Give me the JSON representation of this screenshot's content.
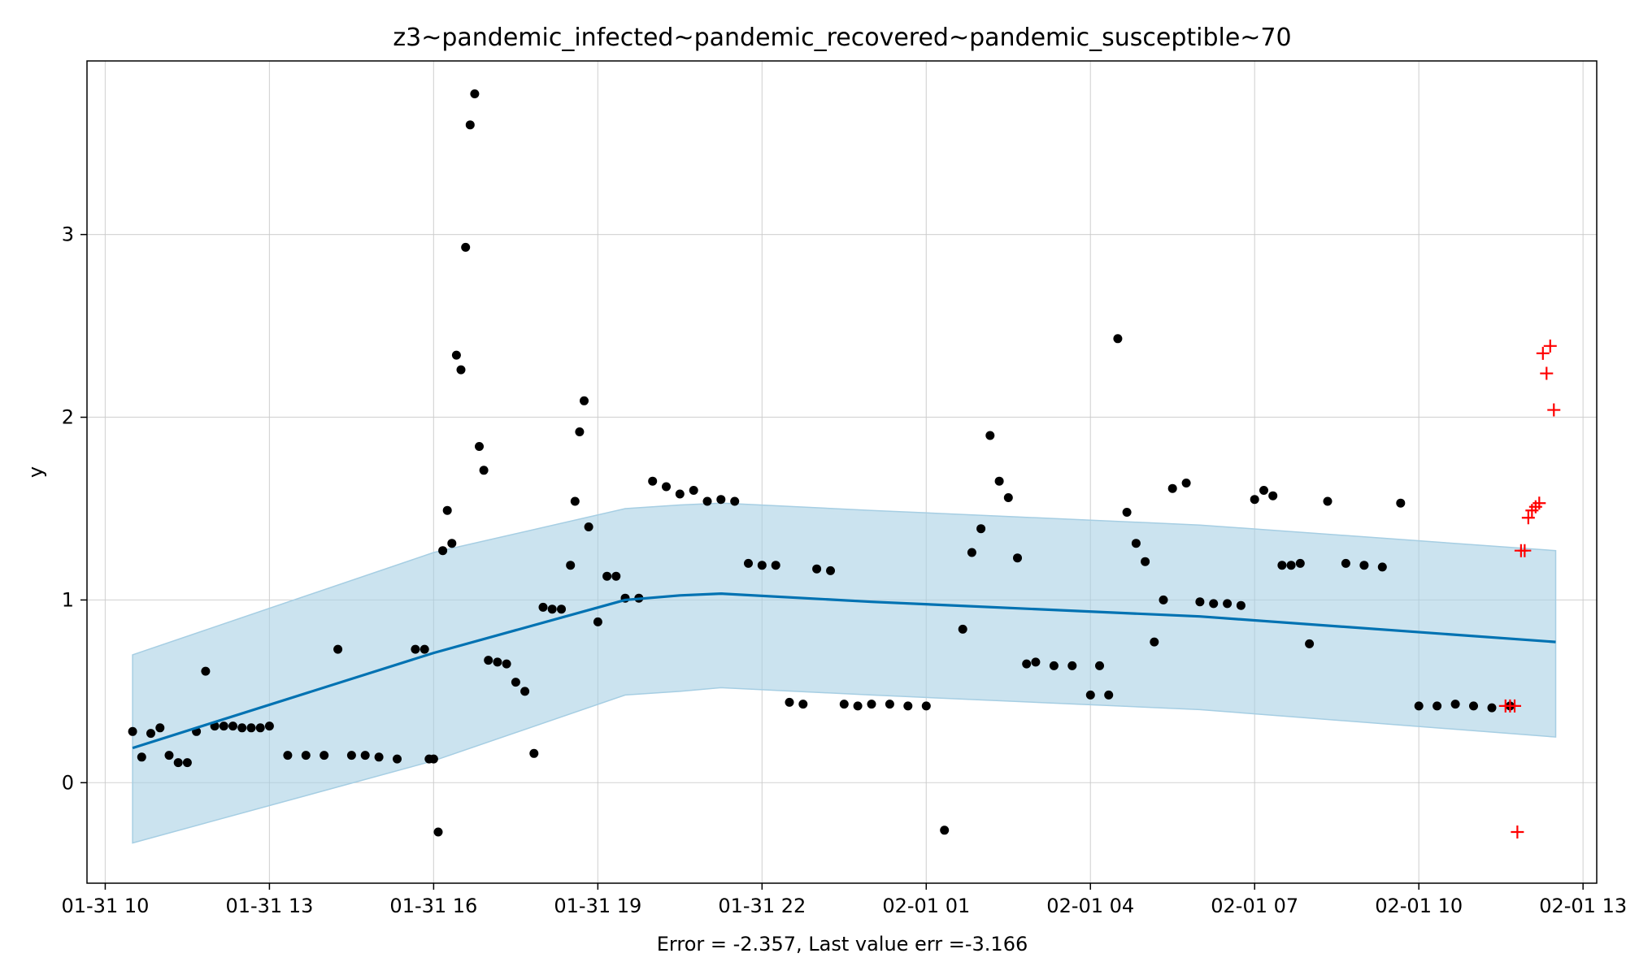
{
  "chart_data": {
    "type": "scatter",
    "title": "z3~pandemic_infected~pandemic_recovered~pandemic_susceptible~70",
    "xlabel": "Error = -2.357, Last value err =-3.166",
    "ylabel": "y",
    "xlim": [
      "2025-01-31T09:40",
      "2025-02-01T13:15"
    ],
    "ylim": [
      -0.55,
      3.95
    ],
    "grid": true,
    "x_ticks": [
      "01-31 10",
      "01-31 13",
      "01-31 16",
      "01-31 19",
      "01-31 22",
      "02-01 01",
      "02-01 04",
      "02-01 07",
      "02-01 10",
      "02-01 13"
    ],
    "x_tick_times": [
      "2025-01-31T10:00",
      "2025-01-31T13:00",
      "2025-01-31T16:00",
      "2025-01-31T19:00",
      "2025-01-31T22:00",
      "2025-02-01T01:00",
      "2025-02-01T04:00",
      "2025-02-01T07:00",
      "2025-02-01T10:00",
      "2025-02-01T13:00"
    ],
    "y_ticks": [
      0,
      1,
      2,
      3
    ],
    "colors": {
      "forecast": "#0072b2",
      "band": "#a6cee3",
      "observed": "#000000",
      "future": "#ff0000"
    },
    "forecast": {
      "x": [
        "2025-01-31T10:30",
        "2025-01-31T16:00",
        "2025-01-31T19:30",
        "2025-01-31T20:30",
        "2025-01-31T21:15",
        "2025-02-01T00:00",
        "2025-02-01T06:00",
        "2025-02-01T12:30"
      ],
      "y": [
        0.19,
        0.71,
        1.0,
        1.025,
        1.035,
        0.99,
        0.91,
        0.77
      ],
      "upper": [
        0.7,
        1.26,
        1.5,
        1.52,
        1.53,
        1.49,
        1.41,
        1.27
      ],
      "lower": [
        -0.33,
        0.12,
        0.48,
        0.5,
        0.52,
        0.48,
        0.4,
        0.25
      ]
    },
    "observed": {
      "x": [
        "2025-01-31T10:30",
        "2025-01-31T10:40",
        "2025-01-31T10:50",
        "2025-01-31T11:00",
        "2025-01-31T11:10",
        "2025-01-31T11:20",
        "2025-01-31T11:30",
        "2025-01-31T11:40",
        "2025-01-31T11:50",
        "2025-01-31T12:00",
        "2025-01-31T12:10",
        "2025-01-31T12:20",
        "2025-01-31T12:30",
        "2025-01-31T12:40",
        "2025-01-31T12:50",
        "2025-01-31T13:00",
        "2025-01-31T13:20",
        "2025-01-31T13:40",
        "2025-01-31T14:00",
        "2025-01-31T14:15",
        "2025-01-31T14:30",
        "2025-01-31T14:45",
        "2025-01-31T15:00",
        "2025-01-31T15:20",
        "2025-01-31T15:40",
        "2025-01-31T15:50",
        "2025-01-31T15:55",
        "2025-01-31T16:00",
        "2025-01-31T16:05",
        "2025-01-31T16:10",
        "2025-01-31T16:15",
        "2025-01-31T16:20",
        "2025-01-31T16:25",
        "2025-01-31T16:30",
        "2025-01-31T16:35",
        "2025-01-31T16:40",
        "2025-01-31T16:45",
        "2025-01-31T16:50",
        "2025-01-31T16:55",
        "2025-01-31T17:00",
        "2025-01-31T17:10",
        "2025-01-31T17:20",
        "2025-01-31T17:30",
        "2025-01-31T17:40",
        "2025-01-31T17:50",
        "2025-01-31T18:00",
        "2025-01-31T18:10",
        "2025-01-31T18:20",
        "2025-01-31T18:30",
        "2025-01-31T18:35",
        "2025-01-31T18:40",
        "2025-01-31T18:45",
        "2025-01-31T18:50",
        "2025-01-31T19:00",
        "2025-01-31T19:10",
        "2025-01-31T19:20",
        "2025-01-31T19:30",
        "2025-01-31T19:45",
        "2025-01-31T20:00",
        "2025-01-31T20:15",
        "2025-01-31T20:30",
        "2025-01-31T20:45",
        "2025-01-31T21:00",
        "2025-01-31T21:15",
        "2025-01-31T21:30",
        "2025-01-31T21:45",
        "2025-01-31T22:00",
        "2025-01-31T22:15",
        "2025-01-31T22:30",
        "2025-01-31T22:45",
        "2025-01-31T23:00",
        "2025-01-31T23:15",
        "2025-01-31T23:30",
        "2025-01-31T23:45",
        "2025-02-01T00:00",
        "2025-02-01T00:20",
        "2025-02-01T00:40",
        "2025-02-01T01:00",
        "2025-02-01T01:20",
        "2025-02-01T01:40",
        "2025-02-01T01:50",
        "2025-02-01T02:00",
        "2025-02-01T02:10",
        "2025-02-01T02:20",
        "2025-02-01T02:30",
        "2025-02-01T02:40",
        "2025-02-01T02:50",
        "2025-02-01T03:00",
        "2025-02-01T03:20",
        "2025-02-01T03:40",
        "2025-02-01T04:00",
        "2025-02-01T04:10",
        "2025-02-01T04:20",
        "2025-02-01T04:30",
        "2025-02-01T04:40",
        "2025-02-01T04:50",
        "2025-02-01T05:00",
        "2025-02-01T05:10",
        "2025-02-01T05:20",
        "2025-02-01T05:30",
        "2025-02-01T05:45",
        "2025-02-01T06:00",
        "2025-02-01T06:15",
        "2025-02-01T06:30",
        "2025-02-01T06:45",
        "2025-02-01T07:00",
        "2025-02-01T07:10",
        "2025-02-01T07:20",
        "2025-02-01T07:30",
        "2025-02-01T07:40",
        "2025-02-01T07:50",
        "2025-02-01T08:00",
        "2025-02-01T08:20",
        "2025-02-01T08:40",
        "2025-02-01T09:00",
        "2025-02-01T09:20",
        "2025-02-01T09:40",
        "2025-02-01T10:00",
        "2025-02-01T10:20",
        "2025-02-01T10:40",
        "2025-02-01T11:00",
        "2025-02-01T11:20",
        "2025-02-01T11:40"
      ],
      "y": [
        0.28,
        0.14,
        0.27,
        0.3,
        0.15,
        0.11,
        0.11,
        0.28,
        0.61,
        0.31,
        0.31,
        0.31,
        0.3,
        0.3,
        0.3,
        0.31,
        0.15,
        0.15,
        0.15,
        0.73,
        0.15,
        0.15,
        0.14,
        0.13,
        0.73,
        0.73,
        0.13,
        0.13,
        -0.27,
        1.27,
        1.49,
        1.31,
        2.34,
        2.26,
        2.93,
        3.6,
        3.77,
        1.84,
        1.71,
        0.67,
        0.66,
        0.65,
        0.55,
        0.5,
        0.16,
        0.96,
        0.95,
        0.95,
        1.19,
        1.54,
        1.92,
        2.09,
        1.4,
        0.88,
        1.13,
        1.13,
        1.01,
        1.01,
        1.65,
        1.62,
        1.58,
        1.6,
        1.54,
        1.55,
        1.54,
        1.2,
        1.19,
        1.19,
        0.44,
        0.43,
        1.17,
        1.16,
        0.43,
        0.42,
        0.43,
        0.43,
        0.42,
        0.42,
        -0.26,
        0.84,
        1.26,
        1.39,
        1.9,
        1.65,
        1.56,
        1.23,
        0.65,
        0.66,
        0.64,
        0.64,
        0.48,
        0.64,
        0.48,
        2.43,
        1.48,
        1.31,
        1.21,
        0.77,
        1.0,
        1.61,
        1.64,
        0.99,
        0.98,
        0.98,
        0.97,
        1.55,
        1.6,
        1.57,
        1.19,
        1.19,
        1.2,
        0.76,
        1.54,
        1.2,
        1.19,
        1.18,
        1.53,
        0.42,
        0.42,
        0.43,
        0.42,
        0.41,
        0.42
      ]
    },
    "future": {
      "x": [
        "2025-02-01T11:35",
        "2025-02-01T11:40",
        "2025-02-01T11:45",
        "2025-02-01T11:48",
        "2025-02-01T11:52",
        "2025-02-01T11:56",
        "2025-02-01T12:00",
        "2025-02-01T12:04",
        "2025-02-01T12:08",
        "2025-02-01T12:12",
        "2025-02-01T12:16",
        "2025-02-01T12:20",
        "2025-02-01T12:24",
        "2025-02-01T12:28"
      ],
      "y": [
        0.42,
        0.42,
        0.42,
        -0.27,
        1.27,
        1.27,
        1.45,
        1.49,
        1.51,
        1.53,
        2.35,
        2.24,
        2.39,
        2.04
      ]
    }
  }
}
